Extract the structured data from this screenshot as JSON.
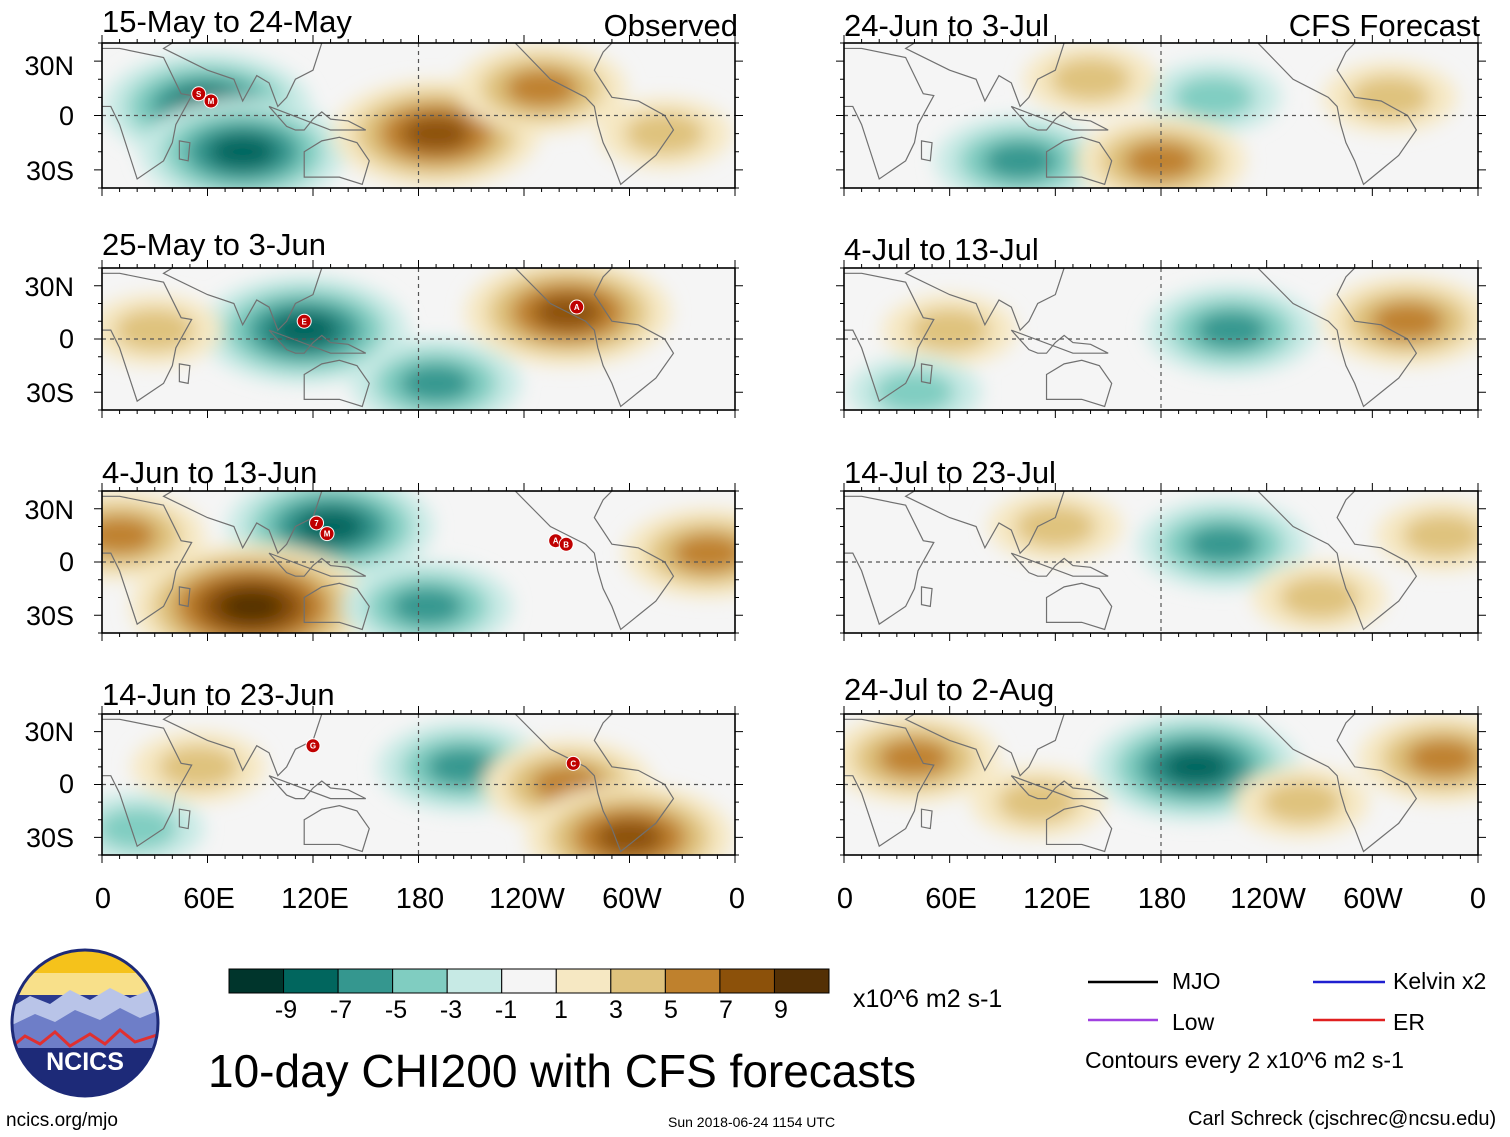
{
  "chart_data": {
    "type": "heatmap",
    "title": "10-day CHI200 with CFS forecasts",
    "variable": "CHI200",
    "units": "x10^6 m2 s-1",
    "x_ticks": [
      "0",
      "60E",
      "120E",
      "180",
      "120W",
      "60W",
      "0"
    ],
    "y_ticks": [
      "30N",
      "0",
      "30S"
    ],
    "xlim_deg_east": [
      0,
      360
    ],
    "ylim_deg": [
      -40,
      40
    ],
    "contour_interval_text": "Contours every 2 x10^6 m2 s-1",
    "colorbar": {
      "levels": [
        "-9",
        "-7",
        "-5",
        "-3",
        "-1",
        "1",
        "3",
        "5",
        "7",
        "9"
      ],
      "colors": [
        "#00352c",
        "#01665e",
        "#35978f",
        "#80cdc1",
        "#c7eae5",
        "#f5f5f5",
        "#f6e8c3",
        "#dfc27d",
        "#bf812d",
        "#8c510a",
        "#543005"
      ]
    },
    "observed_tag": "Observed",
    "forecast_tag": "CFS Forecast",
    "panels": [
      {
        "period": "15-May to 24-May",
        "kind": "observed",
        "storms": [
          "S",
          "M"
        ],
        "features": [
          {
            "lon": 60,
            "lat": 5,
            "value": -7
          },
          {
            "lon": 80,
            "lat": -20,
            "value": -7
          },
          {
            "lon": 190,
            "lat": -10,
            "value": 7
          },
          {
            "lon": 250,
            "lat": 15,
            "value": 5
          },
          {
            "lon": 320,
            "lat": -10,
            "value": 3
          }
        ]
      },
      {
        "period": "25-May to 3-Jun",
        "kind": "observed",
        "storms": [
          "E",
          "A"
        ],
        "features": [
          {
            "lon": 115,
            "lat": 5,
            "value": -7
          },
          {
            "lon": 190,
            "lat": -25,
            "value": -5
          },
          {
            "lon": 265,
            "lat": 15,
            "value": 7
          },
          {
            "lon": 30,
            "lat": 5,
            "value": 3
          }
        ]
      },
      {
        "period": "4-Jun to 13-Jun",
        "kind": "observed",
        "storms": [
          "7",
          "M",
          "A",
          "B"
        ],
        "features": [
          {
            "lon": 130,
            "lat": 20,
            "value": -7
          },
          {
            "lon": 85,
            "lat": -25,
            "value": 9
          },
          {
            "lon": 10,
            "lat": 15,
            "value": 5
          },
          {
            "lon": 345,
            "lat": 5,
            "value": 5
          },
          {
            "lon": 185,
            "lat": -25,
            "value": -5
          }
        ]
      },
      {
        "period": "14-Jun to 23-Jun",
        "kind": "observed",
        "storms": [
          "G",
          "C"
        ],
        "features": [
          {
            "lon": 205,
            "lat": 10,
            "value": -5
          },
          {
            "lon": 265,
            "lat": 0,
            "value": 5
          },
          {
            "lon": 300,
            "lat": -30,
            "value": 7
          },
          {
            "lon": 55,
            "lat": 10,
            "value": 3
          },
          {
            "lon": 20,
            "lat": -25,
            "value": -3
          }
        ]
      },
      {
        "period": "24-Jun to 3-Jul",
        "kind": "forecast",
        "storms": [],
        "features": [
          {
            "lon": 210,
            "lat": 10,
            "value": -3
          },
          {
            "lon": 100,
            "lat": -25,
            "value": -5
          },
          {
            "lon": 180,
            "lat": -25,
            "value": 5
          },
          {
            "lon": 140,
            "lat": 20,
            "value": 3
          },
          {
            "lon": 310,
            "lat": 10,
            "value": 3
          }
        ]
      },
      {
        "period": "4-Jul to 13-Jul",
        "kind": "forecast",
        "storms": [],
        "features": [
          {
            "lon": 220,
            "lat": 5,
            "value": -5
          },
          {
            "lon": 320,
            "lat": 10,
            "value": 5
          },
          {
            "lon": 60,
            "lat": 5,
            "value": 3
          },
          {
            "lon": 40,
            "lat": -30,
            "value": -3
          }
        ]
      },
      {
        "period": "14-Jul to 23-Jul",
        "kind": "forecast",
        "storms": [],
        "features": [
          {
            "lon": 215,
            "lat": 10,
            "value": -5
          },
          {
            "lon": 340,
            "lat": 15,
            "value": 3
          },
          {
            "lon": 120,
            "lat": 20,
            "value": 3
          },
          {
            "lon": 270,
            "lat": -20,
            "value": 3
          }
        ]
      },
      {
        "period": "24-Jul to 2-Aug",
        "kind": "forecast",
        "storms": [],
        "features": [
          {
            "lon": 200,
            "lat": 10,
            "value": -7
          },
          {
            "lon": 40,
            "lat": 15,
            "value": 5
          },
          {
            "lon": 340,
            "lat": 15,
            "value": 5
          },
          {
            "lon": 260,
            "lat": -10,
            "value": 3
          },
          {
            "lon": 110,
            "lat": -10,
            "value": 3
          }
        ]
      }
    ],
    "legend": [
      {
        "label": "MJO",
        "color": "#000000"
      },
      {
        "label": "Kelvin x2",
        "color": "#1f1fd0"
      },
      {
        "label": "Low",
        "color": "#a040e0"
      },
      {
        "label": "ER",
        "color": "#e02020"
      }
    ]
  },
  "logo": {
    "text": "NCICS"
  },
  "footer": {
    "website": "ncics.org/mjo",
    "timestamp": "Sun 2018-06-24 1154 UTC",
    "author": "Carl Schreck (cjschrec@ncsu.edu)"
  }
}
